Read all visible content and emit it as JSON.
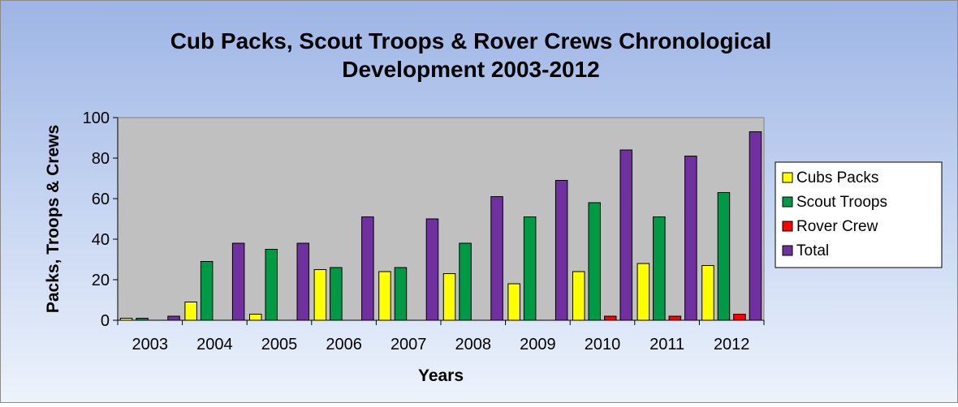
{
  "chart_data": {
    "type": "bar",
    "title": [
      "Cub Packs, Scout Troops & Rover Crews Chronological",
      "Development 2003-2012"
    ],
    "xlabel": "Years",
    "ylabel": "Packs, Troops & Crews",
    "ylim": [
      0,
      100
    ],
    "yticks": [
      "0",
      "20",
      "40",
      "60",
      "80",
      "100"
    ],
    "grid": false,
    "legend_position": "right",
    "categories": [
      "2003",
      "2004",
      "2005",
      "2006",
      "2007",
      "2008",
      "2009",
      "2010",
      "2011",
      "2012"
    ],
    "series": [
      {
        "name": "Cubs Packs",
        "color": "#ffff00",
        "values": [
          1,
          9,
          3,
          25,
          24,
          23,
          18,
          24,
          28,
          27
        ]
      },
      {
        "name": "Scout Troops",
        "color": "#009a46",
        "values": [
          1,
          29,
          35,
          26,
          26,
          38,
          51,
          58,
          51,
          63
        ]
      },
      {
        "name": "Rover Crew",
        "color": "#ff0000",
        "values": [
          0,
          0,
          0,
          0,
          0,
          0,
          0,
          2,
          2,
          3
        ]
      },
      {
        "name": "Total",
        "color": "#7030a0",
        "values": [
          2,
          38,
          38,
          51,
          50,
          61,
          69,
          84,
          81,
          93
        ]
      }
    ]
  }
}
